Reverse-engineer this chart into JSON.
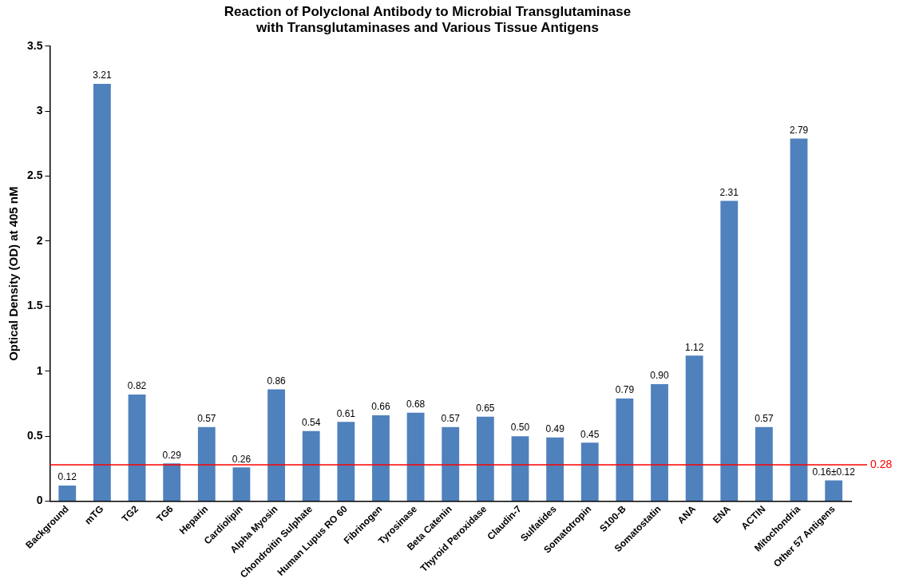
{
  "chart_data": {
    "type": "bar",
    "title": "Reaction of Polyclonal Antibody to Microbial Transglutaminase\nwith Transglutaminases and Various Tissue Antigens",
    "ylabel": "Optical Density (OD) at 405 nM",
    "categories": [
      "Background",
      "mTG",
      "TG2",
      "TG6",
      "Heparin",
      "Cardiolipin",
      "Alpha Myosin",
      "Chondroitin Sulphate",
      "Human Lupus RO 60",
      "Fibrinogen",
      "Tyrosinase",
      "Beta Catenin",
      "Thyroid Peroxidase",
      "Claudin-7",
      "Sulfatides",
      "Somatotropin",
      "S100-B",
      "Somatostatin",
      "ANA",
      "ENA",
      "ACTIN",
      "Mitochondria",
      "Other 57 Antigens"
    ],
    "values": [
      0.12,
      3.21,
      0.82,
      0.29,
      0.57,
      0.26,
      0.86,
      0.54,
      0.61,
      0.66,
      0.68,
      0.57,
      0.65,
      0.5,
      0.49,
      0.45,
      0.79,
      0.9,
      1.12,
      2.31,
      0.57,
      2.79,
      0.16
    ],
    "value_labels": [
      "0.12",
      "3.21",
      "0.82",
      "0.29",
      "0.57",
      "0.26",
      "0.86",
      "0.54",
      "0.61",
      "0.66",
      "0.68",
      "0.57",
      "0.65",
      "0.50",
      "0.49",
      "0.45",
      "0.79",
      "0.90",
      "1.12",
      "2.31",
      "0.57",
      "2.79",
      "0.16±0.12"
    ],
    "color": "#4f81bd",
    "ylim": [
      0,
      3.5
    ],
    "yticks": [
      0,
      0.5,
      1,
      1.5,
      2,
      2.5,
      3,
      3.5
    ],
    "grid": false,
    "legend": false,
    "ref_lines": [
      {
        "axis": "y",
        "value": 0.28,
        "label": "0.28",
        "color": "#ff0000"
      }
    ]
  }
}
